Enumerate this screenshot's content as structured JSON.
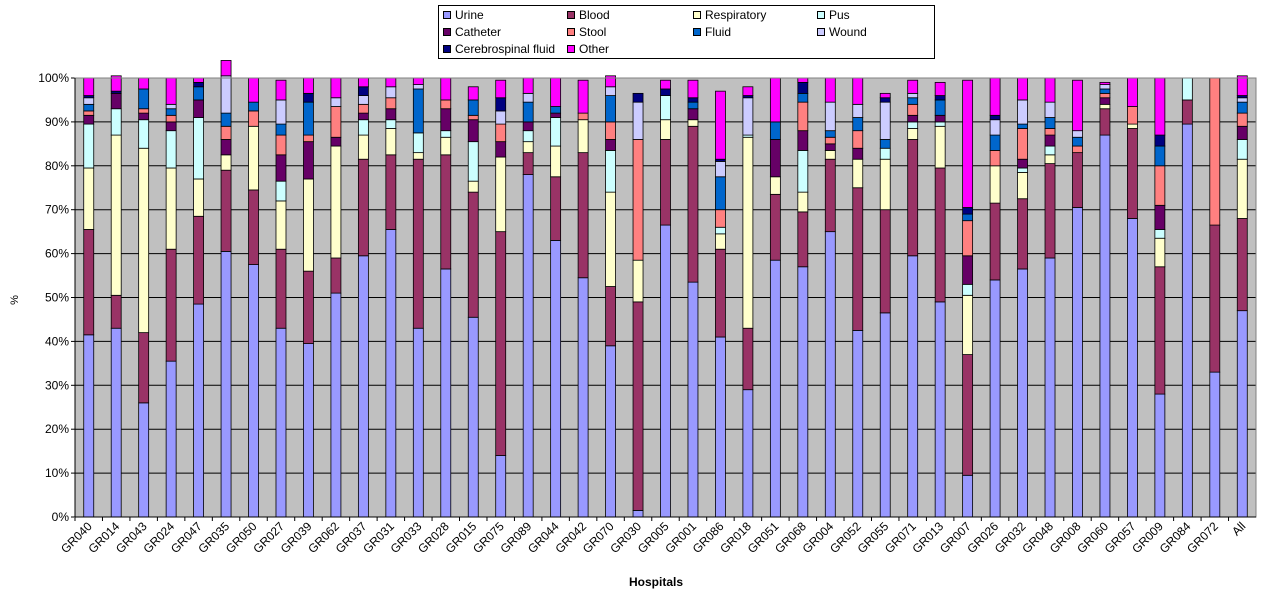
{
  "chart_data": {
    "type": "bar",
    "stacked": true,
    "percent": true,
    "xlabel": "Hospitals",
    "ylabel": "%",
    "ylim": [
      0,
      100
    ],
    "yticks": [
      "0%",
      "10%",
      "20%",
      "30%",
      "40%",
      "50%",
      "60%",
      "70%",
      "80%",
      "90%",
      "100%"
    ],
    "grid": true,
    "legend_position": "top",
    "plot_background": "#c0c0c0",
    "categories": [
      "GR040",
      "GR014",
      "GR043",
      "GR024",
      "GR047",
      "GR035",
      "GR050",
      "GR027",
      "GR039",
      "GR062",
      "GR037",
      "GR031",
      "GR033",
      "GR028",
      "GR015",
      "GR075",
      "GR089",
      "GR044",
      "GR042",
      "GR070",
      "GR030",
      "GR005",
      "GR001",
      "GR086",
      "GR018",
      "GR051",
      "GR068",
      "GR004",
      "GR052",
      "GR055",
      "GR071",
      "GR013",
      "GR007",
      "GR026",
      "GR032",
      "GR048",
      "GR008",
      "GR060",
      "GR057",
      "GR009",
      "GR084",
      "GR072",
      "All"
    ],
    "series": [
      {
        "name": "Urine",
        "color": "#9999ff",
        "values": [
          41.5,
          43,
          26,
          35.5,
          48.5,
          60.5,
          57.5,
          43,
          39.5,
          51,
          59.5,
          65.5,
          43,
          56.5,
          45.5,
          14,
          78,
          63,
          54.5,
          39,
          1.5,
          66.5,
          53.5,
          41,
          29,
          58.5,
          57,
          65,
          42.5,
          46.5,
          59.5,
          49,
          9.5,
          54,
          56.5,
          59,
          70.5,
          87,
          68,
          28,
          89.5,
          33,
          47
        ]
      },
      {
        "name": "Blood",
        "color": "#993366",
        "values": [
          24,
          7.5,
          16,
          25.5,
          20,
          18.5,
          17,
          18,
          16.5,
          8,
          22,
          17,
          38.5,
          26,
          28.5,
          51,
          5,
          14.5,
          28.5,
          13.5,
          47.5,
          19.5,
          35.5,
          20,
          14,
          15,
          12.5,
          16.5,
          32.5,
          23.5,
          26.5,
          30.5,
          27.5,
          17.5,
          16,
          21.5,
          12.5,
          6,
          20.5,
          29,
          5.5,
          33.5,
          21
        ]
      },
      {
        "name": "Respiratory",
        "color": "#ffffcc",
        "values": [
          14,
          36.5,
          42,
          18.5,
          8.5,
          3.5,
          14.5,
          11,
          21,
          25.5,
          5.5,
          6,
          1.5,
          4,
          2.5,
          17,
          2.5,
          7,
          7.5,
          21.5,
          9.5,
          4.5,
          1.5,
          3.5,
          43.5,
          4,
          4.5,
          2,
          6.5,
          11.5,
          2.5,
          9.5,
          13.5,
          8.5,
          6,
          2,
          0,
          1,
          1,
          6.5,
          0,
          0,
          13.5
        ]
      },
      {
        "name": "Pus",
        "color": "#ccffff",
        "values": [
          10,
          6,
          6.5,
          8.5,
          14,
          0,
          0,
          4.5,
          0,
          0,
          3.5,
          2,
          4.5,
          1.5,
          9,
          0,
          2.5,
          6.5,
          0,
          9.5,
          0,
          5.5,
          0,
          1.5,
          0.5,
          0,
          9.5,
          0,
          0,
          2.5,
          1.5,
          1,
          2.5,
          0,
          1,
          2,
          0,
          0,
          0,
          2,
          5,
          0,
          4.5
        ]
      },
      {
        "name": "Catheter",
        "color": "#660066",
        "values": [
          2,
          3.5,
          1.5,
          2,
          4,
          3.5,
          0,
          6,
          8.5,
          2,
          1.5,
          2.5,
          0,
          5,
          5,
          3.5,
          2,
          1,
          0,
          2.5,
          0,
          0,
          2.5,
          0,
          0,
          8.5,
          4.5,
          1.5,
          2.5,
          0,
          1.5,
          1.5,
          6.5,
          0,
          2,
          2.5,
          0,
          1.5,
          0,
          5.5,
          0,
          0,
          3
        ]
      },
      {
        "name": "Stool",
        "color": "#ff8080",
        "values": [
          1,
          0,
          1,
          1.5,
          0,
          3,
          3.5,
          4.5,
          1.5,
          7,
          2,
          2.5,
          0,
          2,
          1,
          4,
          0,
          0,
          1.5,
          4,
          27.5,
          0,
          0,
          4,
          0,
          0,
          6.5,
          1.5,
          4,
          0,
          2.5,
          0,
          8,
          3.5,
          7,
          1.5,
          1.5,
          1,
          4,
          9,
          0,
          33.5,
          3
        ]
      },
      {
        "name": "Fluid",
        "color": "#0066cc",
        "values": [
          1.5,
          0,
          4.5,
          1.5,
          3,
          3,
          2,
          2.5,
          7.5,
          0,
          0,
          0,
          10,
          0,
          3.5,
          0,
          4.5,
          1.5,
          0,
          6,
          0,
          0,
          1.5,
          7.5,
          0,
          4,
          2,
          1.5,
          3,
          2,
          1.5,
          3.5,
          1.5,
          3.5,
          1,
          2.5,
          2,
          1,
          0,
          4.5,
          0,
          0,
          2.5
        ]
      },
      {
        "name": "Wound",
        "color": "#ccccff",
        "values": [
          1.5,
          0,
          0,
          1,
          0,
          8.5,
          0,
          5.5,
          0,
          2,
          2,
          2.5,
          1,
          0,
          0,
          3,
          2,
          0,
          0,
          2,
          8.5,
          0,
          0,
          3.5,
          8.5,
          0,
          0,
          6.5,
          3,
          8.5,
          1,
          0,
          0,
          3.5,
          5.5,
          3.5,
          1.5,
          1,
          0,
          0,
          0,
          0,
          1
        ]
      },
      {
        "name": "Cerebrospinal fluid",
        "color": "#000080",
        "values": [
          0.5,
          0.5,
          0,
          0,
          1,
          0,
          0,
          0,
          2,
          0,
          2,
          0,
          0,
          0,
          0,
          3,
          0,
          0,
          0,
          0,
          2,
          1.5,
          1,
          0.5,
          0.5,
          0,
          2.5,
          0,
          0,
          1,
          0,
          1,
          1.5,
          1,
          0,
          0,
          0,
          0,
          0,
          2.5,
          0,
          0,
          0.5
        ]
      },
      {
        "name": "Other",
        "color": "#ff00ff",
        "values": [
          4,
          3.5,
          2.5,
          6,
          1,
          3.5,
          5.5,
          4.5,
          3.5,
          4.5,
          2,
          2,
          1.5,
          5,
          3,
          4,
          3.5,
          6.5,
          7.5,
          2.5,
          0,
          2,
          4,
          15.5,
          2,
          10,
          1,
          5.5,
          6,
          1,
          3,
          3,
          29,
          8.5,
          5,
          5.5,
          11.5,
          0.5,
          6.5,
          13,
          0,
          0,
          4.5
        ]
      }
    ]
  }
}
